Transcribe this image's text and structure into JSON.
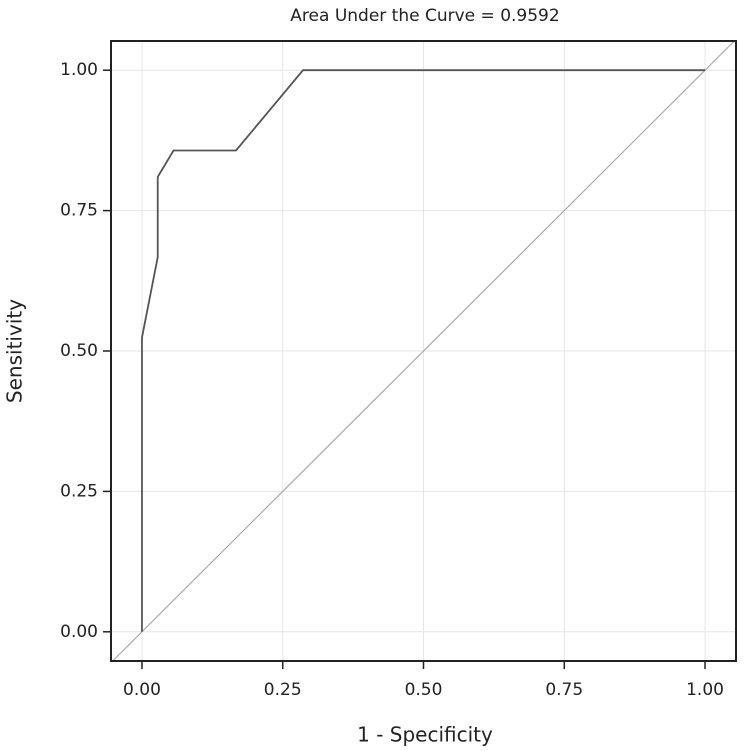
{
  "chart_data": {
    "type": "line",
    "title": "Area Under the Curve = 0.9592",
    "x_label": "1 - Specificity",
    "y_label": "Sensitivity",
    "x": [
      0,
      0,
      0.028,
      0.028,
      0.056,
      0.167,
      0.286,
      1
    ],
    "values": [
      0,
      0.524,
      0.667,
      0.81,
      0.857,
      0.857,
      1,
      1
    ],
    "color": "#555555",
    "xlim": [
      -0.055,
      1.055
    ],
    "ylim": [
      -0.052,
      1.052
    ],
    "xticks": [
      {
        "value": 0,
        "label": "0.00"
      },
      {
        "value": 0.25,
        "label": "0.25"
      },
      {
        "value": 0.5,
        "label": "0.50"
      },
      {
        "value": 0.75,
        "label": "0.75"
      },
      {
        "value": 1,
        "label": "1.00"
      }
    ],
    "yticks": [
      {
        "value": 0,
        "label": "0.00"
      },
      {
        "value": 0.25,
        "label": "0.25"
      },
      {
        "value": 0.5,
        "label": "0.50"
      },
      {
        "value": 0.75,
        "label": "0.75"
      },
      {
        "value": 1,
        "label": "1.00"
      }
    ],
    "grid": true
  }
}
